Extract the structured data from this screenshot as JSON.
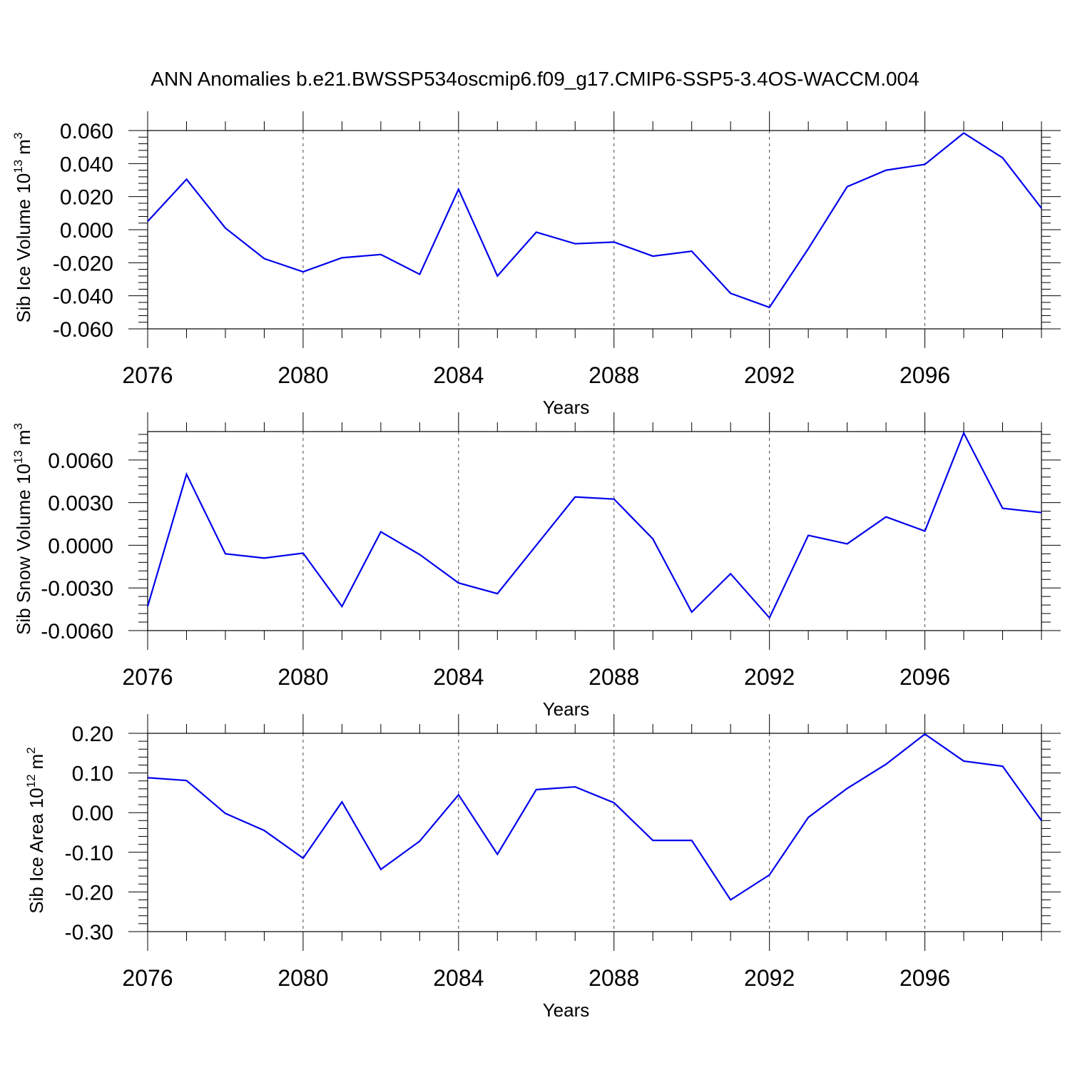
{
  "chart_data": {
    "title": "ANN Anomalies b.e21.BWSSP534oscmip6.f09_g17.CMIP6-SSP5-3.4OS-WACCM.004",
    "type": "line",
    "series_color": "#0000ee",
    "x": [
      2076,
      2077,
      2078,
      2079,
      2080,
      2081,
      2082,
      2083,
      2084,
      2085,
      2086,
      2087,
      2088,
      2089,
      2090,
      2091,
      2092,
      2093,
      2094,
      2095,
      2096,
      2097,
      2098,
      2099
    ],
    "panels": [
      {
        "ylabel_main": "Sib Ice Volume 10",
        "ylabel_exp": "13",
        "ylabel_unit": "m",
        "ylabel_unit_exp": "3",
        "xlabel": "Years",
        "xlim": [
          2076,
          2099
        ],
        "ylim": [
          -0.06,
          0.06
        ],
        "yticks": [
          -0.06,
          -0.04,
          -0.02,
          0.0,
          0.02,
          0.04,
          0.06
        ],
        "ytick_labels": [
          "-0.060",
          "-0.040",
          "-0.020",
          "0.000",
          "0.020",
          "0.040",
          "0.060"
        ],
        "xticks": [
          2076,
          2080,
          2084,
          2088,
          2092,
          2096
        ],
        "xtick_labels": [
          "2076",
          "2080",
          "2084",
          "2088",
          "2092",
          "2096"
        ],
        "values": [
          0.005,
          0.0305,
          0.001,
          -0.0175,
          -0.0255,
          -0.017,
          -0.015,
          -0.027,
          0.0245,
          -0.028,
          -0.0015,
          -0.0085,
          -0.0075,
          -0.016,
          -0.013,
          -0.0385,
          -0.047,
          -0.0115,
          0.026,
          0.036,
          0.0395,
          0.0585,
          0.0435,
          0.013
        ]
      },
      {
        "ylabel_main": "Sib Snow Volume 10",
        "ylabel_exp": "13",
        "ylabel_unit": "m",
        "ylabel_unit_exp": "3",
        "xlabel": "Years",
        "xlim": [
          2076,
          2099
        ],
        "ylim": [
          -0.006,
          0.008
        ],
        "yticks": [
          -0.006,
          -0.003,
          0.0,
          0.003,
          0.006
        ],
        "ytick_labels": [
          "-0.0060",
          "-0.0030",
          "0.0000",
          "0.0030",
          "0.0060"
        ],
        "xticks": [
          2076,
          2080,
          2084,
          2088,
          2092,
          2096
        ],
        "xtick_labels": [
          "2076",
          "2080",
          "2084",
          "2088",
          "2092",
          "2096"
        ],
        "values": [
          -0.0043,
          0.005,
          -0.0006,
          -0.0009,
          -0.00055,
          -0.0043,
          0.00095,
          -0.00065,
          -0.00265,
          -0.0034,
          0.0,
          0.0034,
          0.00325,
          0.00045,
          -0.0047,
          -0.002,
          -0.0051,
          0.0007,
          0.0001,
          0.002,
          0.001,
          0.0079,
          0.0026,
          0.0023
        ]
      },
      {
        "ylabel_main": "Sib Ice Area 10",
        "ylabel_exp": "12",
        "ylabel_unit": "m",
        "ylabel_unit_exp": "2",
        "xlabel": "Years",
        "xlim": [
          2076,
          2099
        ],
        "ylim": [
          -0.3,
          0.2
        ],
        "yticks": [
          -0.3,
          -0.2,
          -0.1,
          0.0,
          0.1,
          0.2
        ],
        "ytick_labels": [
          "-0.30",
          "-0.20",
          "-0.10",
          "0.00",
          "0.10",
          "0.20"
        ],
        "xticks": [
          2076,
          2080,
          2084,
          2088,
          2092,
          2096
        ],
        "xtick_labels": [
          "2076",
          "2080",
          "2084",
          "2088",
          "2092",
          "2096"
        ],
        "values": [
          0.088,
          0.081,
          -0.002,
          -0.045,
          -0.115,
          0.027,
          -0.143,
          -0.072,
          0.045,
          -0.105,
          0.058,
          0.065,
          0.025,
          -0.07,
          -0.07,
          -0.22,
          -0.157,
          -0.012,
          0.061,
          0.122,
          0.198,
          0.13,
          0.117,
          -0.02
        ]
      }
    ]
  }
}
